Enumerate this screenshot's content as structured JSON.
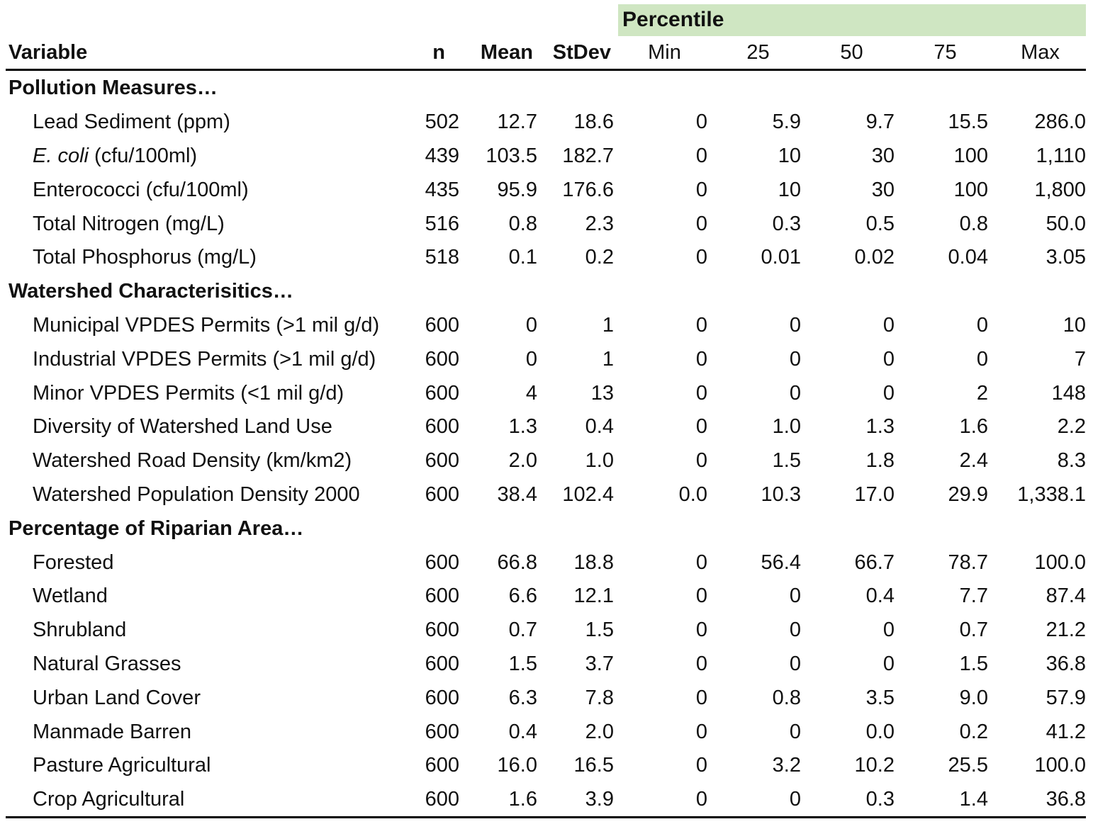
{
  "header": {
    "percentile_label": "Percentile",
    "columns": [
      "Variable",
      "n",
      "Mean",
      "StDev",
      "Min",
      "25",
      "50",
      "75",
      "Max"
    ]
  },
  "sections": [
    {
      "title": "Pollution Measures…",
      "rows": [
        {
          "variable": "Lead Sediment (ppm)",
          "values": [
            "502",
            "12.7",
            "18.6",
            "0",
            "5.9",
            "9.7",
            "15.5",
            "286.0"
          ]
        },
        {
          "variable_italic": "E. coli",
          "variable_rest": " (cfu/100ml)",
          "values": [
            "439",
            "103.5",
            "182.7",
            "0",
            "10",
            "30",
            "100",
            "1,110"
          ]
        },
        {
          "variable": "Enterococci (cfu/100ml)",
          "values": [
            "435",
            "95.9",
            "176.6",
            "0",
            "10",
            "30",
            "100",
            "1,800"
          ]
        },
        {
          "variable": "Total Nitrogen (mg/L)",
          "values": [
            "516",
            "0.8",
            "2.3",
            "0",
            "0.3",
            "0.5",
            "0.8",
            "50.0"
          ]
        },
        {
          "variable": "Total Phosphorus (mg/L)",
          "values": [
            "518",
            "0.1",
            "0.2",
            "0",
            "0.01",
            "0.02",
            "0.04",
            "3.05"
          ]
        }
      ]
    },
    {
      "title": "Watershed Characterisitics…",
      "rows": [
        {
          "variable": "Municipal VPDES Permits (>1 mil g/d)",
          "values": [
            "600",
            "0",
            "1",
            "0",
            "0",
            "0",
            "0",
            "10"
          ]
        },
        {
          "variable": "Industrial VPDES Permits (>1 mil g/d)",
          "values": [
            "600",
            "0",
            "1",
            "0",
            "0",
            "0",
            "0",
            "7"
          ]
        },
        {
          "variable": "Minor VPDES Permits (<1 mil g/d)",
          "values": [
            "600",
            "4",
            "13",
            "0",
            "0",
            "0",
            "2",
            "148"
          ]
        },
        {
          "variable": "Diversity of Watershed Land Use",
          "values": [
            "600",
            "1.3",
            "0.4",
            "0",
            "1.0",
            "1.3",
            "1.6",
            "2.2"
          ]
        },
        {
          "variable": "Watershed Road Density (km/km2)",
          "values": [
            "600",
            "2.0",
            "1.0",
            "0",
            "1.5",
            "1.8",
            "2.4",
            "8.3"
          ]
        },
        {
          "variable": "Watershed Population Density 2000",
          "values": [
            "600",
            "38.4",
            "102.4",
            "0.0",
            "10.3",
            "17.0",
            "29.9",
            "1,338.1"
          ]
        }
      ]
    },
    {
      "title": "Percentage of Riparian Area…",
      "rows": [
        {
          "variable": "Forested",
          "values": [
            "600",
            "66.8",
            "18.8",
            "0",
            "56.4",
            "66.7",
            "78.7",
            "100.0"
          ]
        },
        {
          "variable": "Wetland",
          "values": [
            "600",
            "6.6",
            "12.1",
            "0",
            "0",
            "0.4",
            "7.7",
            "87.4"
          ]
        },
        {
          "variable": "Shrubland",
          "values": [
            "600",
            "0.7",
            "1.5",
            "0",
            "0",
            "0",
            "0.7",
            "21.2"
          ]
        },
        {
          "variable": "Natural Grasses",
          "values": [
            "600",
            "1.5",
            "3.7",
            "0",
            "0",
            "0",
            "1.5",
            "36.8"
          ]
        },
        {
          "variable": "Urban Land Cover",
          "values": [
            "600",
            "6.3",
            "7.8",
            "0",
            "0.8",
            "3.5",
            "9.0",
            "57.9"
          ]
        },
        {
          "variable": "Manmade Barren",
          "values": [
            "600",
            "0.4",
            "2.0",
            "0",
            "0",
            "0.0",
            "0.2",
            "41.2"
          ]
        },
        {
          "variable": "Pasture Agricultural",
          "values": [
            "600",
            "16.0",
            "16.5",
            "0",
            "3.2",
            "10.2",
            "25.5",
            "100.0"
          ]
        },
        {
          "variable": "Crop Agricultural",
          "values": [
            "600",
            "1.6",
            "3.9",
            "0",
            "0",
            "0.3",
            "1.4",
            "36.8"
          ]
        }
      ]
    }
  ]
}
